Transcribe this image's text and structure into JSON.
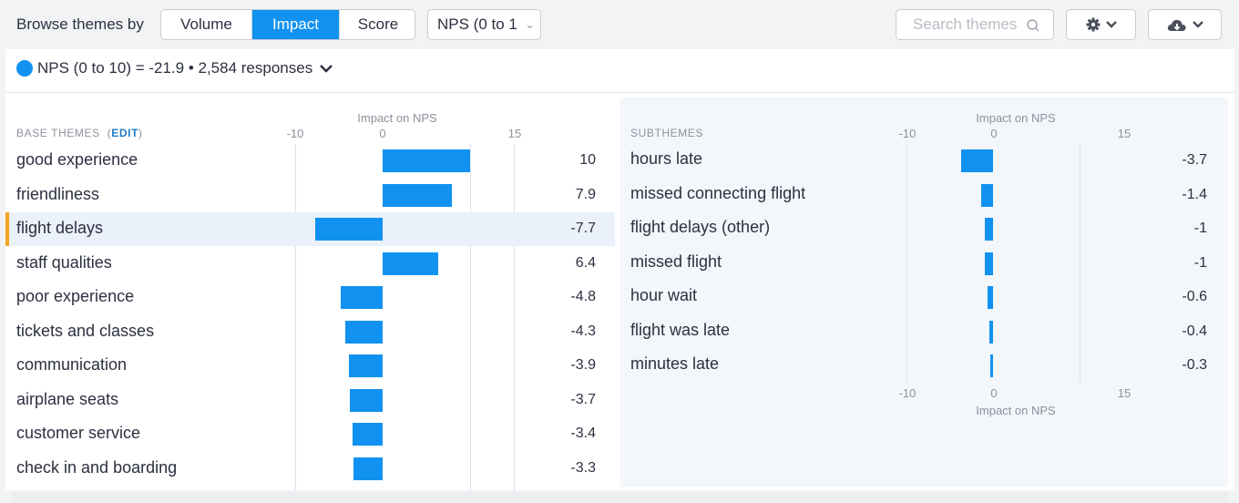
{
  "toolbar": {
    "browse_label": "Browse themes by",
    "tabs": [
      {
        "label": "Volume",
        "active": false
      },
      {
        "label": "Impact",
        "active": true
      },
      {
        "label": "Score",
        "active": false
      }
    ],
    "metric_select": "NPS (0 to 1",
    "search_placeholder": "Search themes",
    "settings_icon": "gear-icon",
    "download_icon": "cloud-download-icon"
  },
  "summary": {
    "text": "NPS (0 to 10) = -21.9 • 2,584 responses"
  },
  "base_themes": {
    "heading": "BASE THEMES",
    "edit_label": "EDIT",
    "axis_title": "Impact on NPS",
    "ticks": [
      "-10",
      "0",
      "15"
    ],
    "selected_index": 2,
    "rows": [
      {
        "label": "good experience",
        "value": 10,
        "value_text": "10"
      },
      {
        "label": "friendliness",
        "value": 7.9,
        "value_text": "7.9"
      },
      {
        "label": "flight delays",
        "value": -7.7,
        "value_text": "-7.7"
      },
      {
        "label": "staff qualities",
        "value": 6.4,
        "value_text": "6.4"
      },
      {
        "label": "poor experience",
        "value": -4.8,
        "value_text": "-4.8"
      },
      {
        "label": "tickets and classes",
        "value": -4.3,
        "value_text": "-4.3"
      },
      {
        "label": "communication",
        "value": -3.9,
        "value_text": "-3.9"
      },
      {
        "label": "airplane seats",
        "value": -3.7,
        "value_text": "-3.7"
      },
      {
        "label": "customer service",
        "value": -3.4,
        "value_text": "-3.4"
      },
      {
        "label": "check in and boarding",
        "value": -3.3,
        "value_text": "-3.3"
      }
    ]
  },
  "subthemes": {
    "heading": "SUBTHEMES",
    "axis_title": "Impact on NPS",
    "ticks": [
      "-10",
      "0",
      "15"
    ],
    "rows": [
      {
        "label": "hours late",
        "value": -3.7,
        "value_text": "-3.7"
      },
      {
        "label": "missed connecting flight",
        "value": -1.4,
        "value_text": "-1.4"
      },
      {
        "label": "flight delays (other)",
        "value": -1,
        "value_text": "-1"
      },
      {
        "label": "missed flight",
        "value": -1,
        "value_text": "-1"
      },
      {
        "label": "hour wait",
        "value": -0.6,
        "value_text": "-0.6"
      },
      {
        "label": "flight was late",
        "value": -0.4,
        "value_text": "-0.4"
      },
      {
        "label": "minutes late",
        "value": -0.3,
        "value_text": "-0.3"
      }
    ]
  },
  "colors": {
    "accent": "#1192f0",
    "highlight_row": "#ebf1fb",
    "selected_marker": "#f5a524"
  }
}
